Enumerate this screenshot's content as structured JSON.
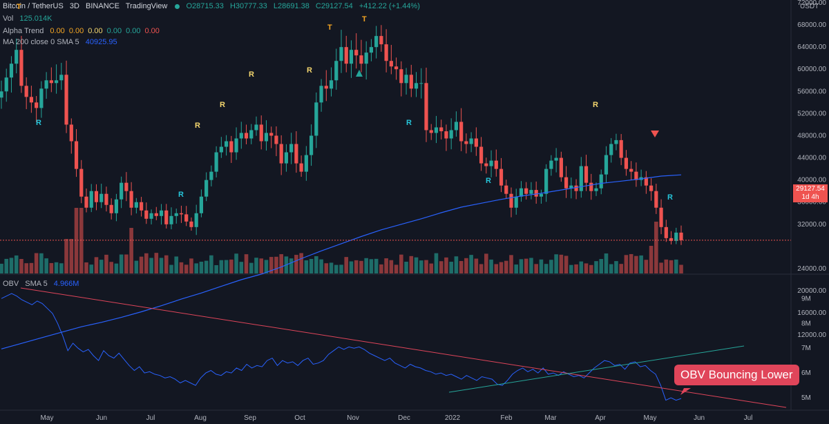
{
  "header": {
    "symbol": "Bitcoin / TetherUS",
    "interval": "3D",
    "exchange": "BINANCE",
    "source": "TradingView",
    "open": "O28715.33",
    "high": "H30777.33",
    "low": "L28691.38",
    "close": "C29127.54",
    "change": "+412.22 (+1.44%)"
  },
  "indicators": {
    "vol_label": "Vol",
    "vol_value": "125.014K",
    "alpha_label": "Alpha Trend",
    "alpha_values": [
      "0.00",
      "0.00",
      "0.00",
      "0.00",
      "0.00",
      "0.00"
    ],
    "alpha_colors": [
      "#f5a623",
      "#f5a623",
      "#f5d76e",
      "#26a69a",
      "#26a69a",
      "#ef5350"
    ],
    "ma_label": "MA 200 close 0 SMA 5",
    "ma_value": "40925.95",
    "obv_label": "OBV",
    "obv_sma": "SMA 5",
    "obv_value": "4.966M"
  },
  "price_axis": {
    "unit": "USDT",
    "ticks": [
      "72000.00",
      "68000.00",
      "64000.00",
      "60000.00",
      "56000.00",
      "52000.00",
      "48000.00",
      "44000.00",
      "40000.00",
      "36000.00",
      "32000.00",
      "24000.00",
      "20000.00",
      "16000.00",
      "12000.00"
    ],
    "last_price": "29127.54",
    "countdown": "1d 4h"
  },
  "obv_axis": {
    "ticks": [
      "9M",
      "8M",
      "7M",
      "6M",
      "5M"
    ]
  },
  "time_axis": {
    "ticks": [
      "May",
      "Jun",
      "Jul",
      "Aug",
      "Sep",
      "Oct",
      "Nov",
      "Dec",
      "2022",
      "Feb",
      "Mar",
      "Apr",
      "May",
      "Jun",
      "Jul"
    ]
  },
  "signals": [
    {
      "text": "T",
      "color": "#f5a623"
    },
    {
      "text": "R",
      "color": "#26c6da"
    },
    {
      "text": "R",
      "color": "#26c6da"
    },
    {
      "text": "R",
      "color": "#f5d76e"
    },
    {
      "text": "R",
      "color": "#f5d76e"
    },
    {
      "text": "R",
      "color": "#f5d76e"
    },
    {
      "text": "R",
      "color": "#f5d76e"
    },
    {
      "text": "T",
      "color": "#f5a623"
    },
    {
      "text": "T",
      "color": "#f5a623"
    },
    {
      "text": "R",
      "color": "#26c6da"
    },
    {
      "text": "R",
      "color": "#26c6da"
    },
    {
      "text": "R",
      "color": "#f5d76e"
    },
    {
      "text": "R",
      "color": "#26c6da"
    }
  ],
  "annotation": "OBV Bouncing Lower",
  "colors": {
    "up": "#26a69a",
    "down": "#ef5350",
    "ma": "#2962ff",
    "obv": "#2962ff",
    "trend_down": "#e0455a",
    "trend_up": "#26a69a",
    "bg": "#131722"
  },
  "chart_data": [
    {
      "type": "candlestick",
      "title": "Bitcoin / TetherUS 3D BINANCE",
      "ylim": [
        23000,
        72000
      ],
      "x_start": "2021-04-05",
      "interval_days": 3,
      "closes": [
        56000,
        58500,
        61000,
        63500,
        57000,
        55000,
        54000,
        53000,
        56500,
        58000,
        57500,
        58000,
        59000,
        50000,
        47000,
        42000,
        37000,
        35000,
        38000,
        36000,
        37500,
        35500,
        34000,
        36500,
        39500,
        38000,
        35000,
        36000,
        34500,
        33000,
        34000,
        33500,
        34500,
        32000,
        33500,
        34000,
        33800,
        32500,
        31500,
        34000,
        37000,
        40000,
        41500,
        45000,
        46000,
        47000,
        45000,
        47500,
        48500,
        47500,
        49000,
        50000,
        47000,
        48500,
        48000,
        46500,
        43000,
        45000,
        46500,
        43000,
        41500,
        44500,
        48000,
        54000,
        57000,
        56500,
        58000,
        61500,
        64000,
        61000,
        63500,
        62500,
        61000,
        63000,
        64000,
        66000,
        64500,
        61500,
        60500,
        60000,
        57500,
        59000,
        56500,
        57500,
        57500,
        49000,
        48500,
        49500,
        48800,
        47500,
        49000,
        50500,
        47000,
        46500,
        47500,
        46000,
        43000,
        42500,
        43500,
        42000,
        39000,
        37500,
        35000,
        37000,
        38500,
        37500,
        38200,
        37000,
        37500,
        42000,
        43500,
        44000,
        40500,
        38500,
        39000,
        38000,
        42500,
        39500,
        38000,
        38500,
        41000,
        44500,
        46500,
        47200,
        44000,
        42000,
        41500,
        40000,
        40500,
        39000,
        38000,
        35000,
        31500,
        29500,
        29000,
        30500,
        29127.54
      ],
      "ma200": [
        9500,
        10500,
        11500,
        12500,
        13500,
        14300,
        15200,
        16200,
        17300,
        18500,
        19600,
        20800,
        22000,
        23000,
        24300,
        25800,
        27200,
        28500,
        29800,
        31000,
        32000,
        33000,
        34100,
        35100,
        35800,
        36500,
        37100,
        37600,
        38200,
        38800,
        39400,
        39800,
        40200,
        40700,
        40925.95
      ],
      "volume": {
        "ticks": [
          12000,
          16000,
          20000,
          24000
        ]
      }
    },
    {
      "type": "line",
      "title": "OBV",
      "ylim": [
        4.5,
        9.9
      ],
      "obv": [
        9.0,
        9.1,
        9.2,
        9.1,
        8.95,
        8.85,
        8.75,
        8.9,
        8.8,
        8.6,
        8.4,
        8.0,
        7.5,
        6.9,
        7.2,
        7.0,
        6.85,
        6.95,
        6.7,
        6.5,
        6.9,
        6.7,
        6.6,
        6.8,
        6.55,
        6.3,
        6.1,
        6.25,
        6.0,
        6.05,
        5.95,
        5.9,
        5.8,
        5.85,
        5.75,
        5.6,
        5.7,
        5.6,
        5.5,
        5.8,
        6.0,
        6.1,
        5.95,
        5.9,
        6.05,
        6.0,
        6.2,
        6.1,
        6.35,
        6.2,
        6.3,
        6.25,
        6.5,
        6.6,
        6.3,
        6.5,
        6.4,
        6.45,
        6.3,
        6.5,
        6.6,
        6.35,
        6.4,
        6.5,
        6.75,
        6.9,
        7.05,
        6.95,
        7.05,
        7.0,
        7.05,
        6.95,
        6.8,
        6.7,
        6.6,
        6.5,
        6.6,
        6.4,
        6.3,
        6.2,
        6.35,
        6.25,
        6.2,
        6.1,
        6.05,
        5.95,
        6.0,
        5.9,
        5.95,
        5.85,
        5.75,
        5.9,
        5.8,
        5.7,
        5.85,
        5.8,
        5.75,
        5.55,
        5.5,
        5.7,
        5.95,
        6.1,
        6.2,
        6.05,
        6.15,
        6.0,
        6.2,
        5.95,
        6.0,
        5.9,
        6.05,
        5.95,
        5.85,
        5.9,
        5.8,
        6.0,
        6.2,
        6.35,
        6.5,
        6.45,
        6.3,
        6.35,
        6.15,
        6.4,
        6.45,
        6.25,
        6.3,
        6.1,
        5.95,
        5.5,
        4.9,
        5.0,
        4.9,
        4.97
      ]
    }
  ]
}
